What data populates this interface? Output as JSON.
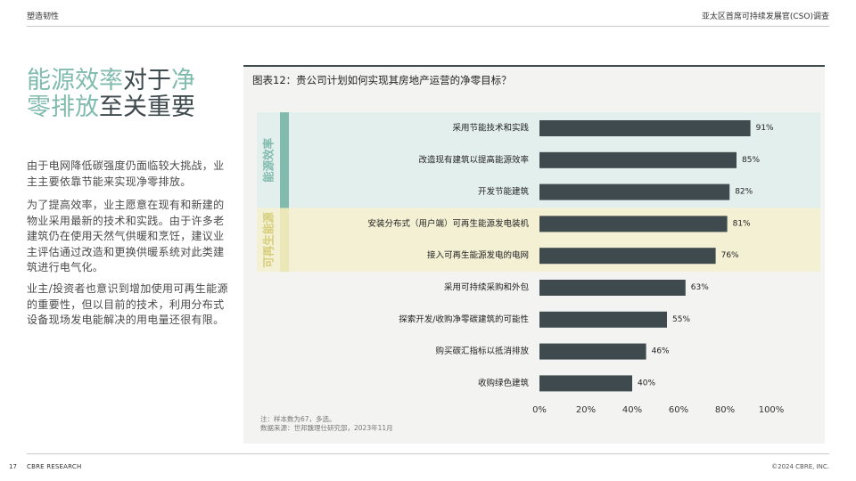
{
  "header": {
    "left": "塑造韧性",
    "right": "亚太区首席可持续发展官(CSO)调查"
  },
  "headline": {
    "line1_green": "能源效率",
    "line1_dark": "对于",
    "line1_green2": "净",
    "line2_green": "零排放",
    "line2_dark": "至关重要"
  },
  "paragraphs": [
    "由于电网降低碳强度仍面临较大挑战，业主主要依靠节能来实现净零排放。",
    "为了提高效率，业主愿意在现有和新建的物业采用最新的技术和实践。由于许多老建筑仍在使用天然气供暖和烹饪，建议业主评估通过改造和更换供暖系统对此类建筑进行电气化。",
    "业主/投资者也意识到增加使用可再生能源的重要性，但以目前的技术，利用分布式设备现场发电能解决的用电量还很有限。"
  ],
  "chart_title": "图表12：贵公司计划如何实现其房地产运营的净零目标？",
  "notes": {
    "line1": "注：样本数为67，多选。",
    "line2": "数据来源：世邦魏理仕研究部，2023年11月"
  },
  "colors": {
    "bar": "#3e4a4d",
    "accent_green": "#80bbad",
    "band_green": "#e3efec",
    "accent_yellow": "#ece7b9",
    "band_yellow": "#f3f0d3",
    "group_label_green": "#80bbad",
    "group_label_yellow": "#d6cd7a"
  },
  "chart_data": {
    "type": "bar",
    "orientation": "horizontal",
    "categories": [
      "采用节能技术和实践",
      "改造现有建筑以提高能源效率",
      "开发节能建筑",
      "安装分布式（用户端）可再生能源发电装机",
      "接入可再生能源发电的电网",
      "采用可持续采购和外包",
      "探索开发/收购净零碳建筑的可能性",
      "购买碳汇指标以抵消排放",
      "收购绿色建筑"
    ],
    "values": [
      91,
      85,
      82,
      81,
      76,
      63,
      55,
      46,
      40
    ],
    "value_labels": [
      "91%",
      "85%",
      "82%",
      "81%",
      "76%",
      "63%",
      "55%",
      "46%",
      "40%"
    ],
    "xlim": [
      0,
      100
    ],
    "x_ticks": [
      "0%",
      "20%",
      "40%",
      "60%",
      "80%",
      "100%"
    ],
    "groups": [
      {
        "label": "能源效率",
        "start": 0,
        "end": 2,
        "color": "green"
      },
      {
        "label": "可再生能源",
        "start": 3,
        "end": 4,
        "color": "yellow"
      }
    ],
    "grid": false
  },
  "footer": {
    "page": "17",
    "brand": "CBRE RESEARCH",
    "copyright": "©2024 CBRE, INC."
  }
}
